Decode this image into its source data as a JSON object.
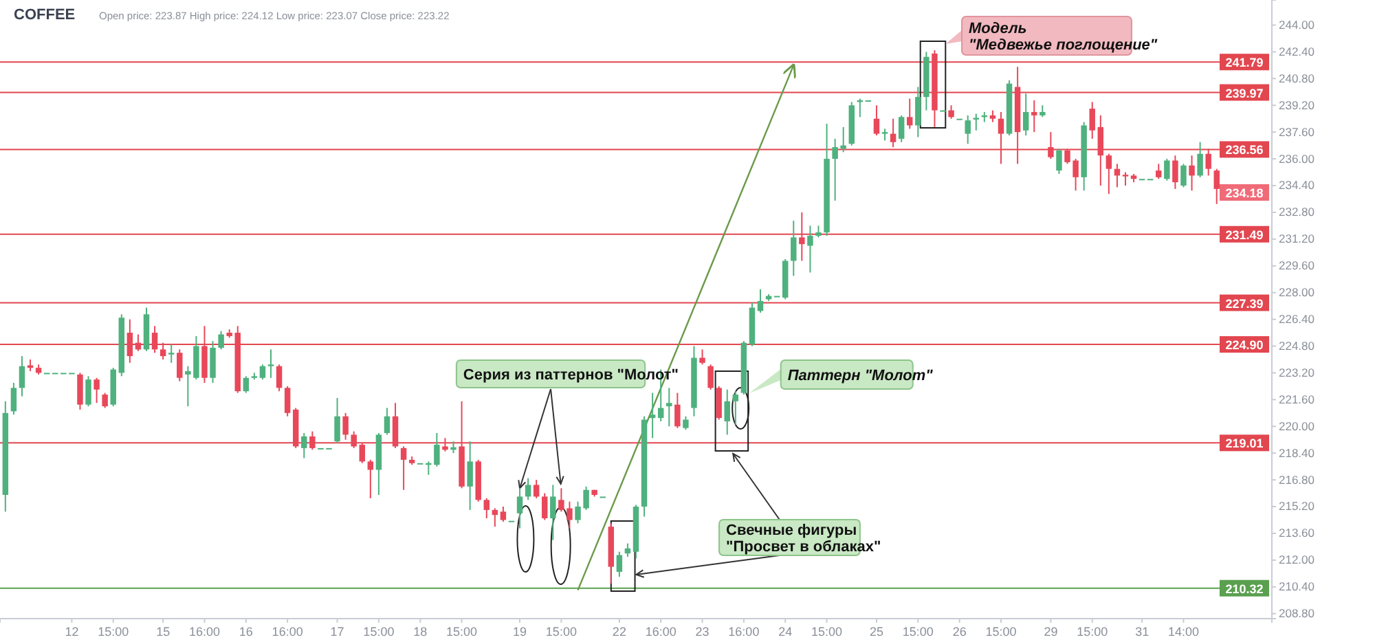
{
  "chart_data": {
    "type": "candlestick",
    "title": "COFFEE",
    "subtitle": "Open price: 223.87   High price: 224.12   Low price: 223.07   Close price: 223.22",
    "categories": [
      null,
      null,
      null,
      null,
      null,
      null,
      null,
      null,
      "12",
      null,
      null,
      null,
      null,
      "15:00",
      null,
      null,
      null,
      null,
      null,
      "15",
      null,
      null,
      null,
      null,
      "16:00",
      null,
      null,
      null,
      null,
      "16",
      null,
      null,
      null,
      null,
      "16:00",
      null,
      null,
      null,
      null,
      null,
      "17",
      null,
      null,
      null,
      null,
      "15:00",
      null,
      null,
      null,
      null,
      "18",
      null,
      null,
      null,
      null,
      "15:00",
      null,
      null,
      null,
      null,
      null,
      null,
      "19",
      null,
      null,
      null,
      null,
      "15:00",
      null,
      null,
      null,
      null,
      null,
      null,
      "22",
      null,
      null,
      null,
      null,
      "16:00",
      null,
      null,
      null,
      null,
      "23",
      null,
      null,
      null,
      null,
      "16:00",
      null,
      null,
      null,
      null,
      "24",
      null,
      null,
      null,
      null,
      "15:00",
      null,
      null,
      null,
      null,
      null,
      "25",
      null,
      null,
      null,
      null,
      "15:00",
      null,
      null,
      null,
      null,
      "26",
      null,
      null,
      null,
      null,
      "15:00",
      null,
      null,
      null,
      null,
      null,
      "29",
      null,
      null,
      null,
      null,
      "15:00",
      null,
      null,
      null,
      null,
      null,
      "31",
      null,
      null,
      null,
      null,
      "14:00",
      null,
      null,
      null,
      null
    ],
    "ohlc": [
      [
        215.9,
        221.5,
        214.9,
        220.8
      ],
      [
        220.9,
        222.6,
        220.7,
        222.3
      ],
      [
        222.3,
        224.2,
        221.8,
        223.6
      ],
      [
        223.65,
        224.0,
        223.3,
        223.5
      ],
      [
        223.5,
        223.7,
        223.1,
        223.2
      ],
      [
        223.2,
        223.2,
        223.2,
        223.2
      ],
      [
        223.2,
        223.2,
        223.2,
        223.2
      ],
      [
        223.2,
        223.2,
        223.2,
        223.2
      ],
      [
        223.2,
        223.2,
        223.2,
        223.2
      ],
      [
        223.1,
        223.2,
        221.0,
        221.3
      ],
      [
        221.3,
        223.0,
        221.2,
        222.8
      ],
      [
        222.8,
        222.9,
        221.4,
        222.2
      ],
      [
        221.9,
        222.0,
        221.1,
        221.2
      ],
      [
        221.3,
        223.5,
        221.2,
        223.4
      ],
      [
        223.2,
        226.7,
        223.0,
        226.5
      ],
      [
        225.6,
        226.4,
        223.8,
        224.2
      ],
      [
        225.0,
        225.5,
        224.5,
        224.6
      ],
      [
        224.6,
        227.1,
        224.5,
        226.7
      ],
      [
        225.6,
        226.0,
        224.4,
        224.6
      ],
      [
        224.6,
        225.0,
        224.0,
        224.2
      ],
      [
        224.3,
        224.9,
        223.8,
        224.4
      ],
      [
        224.4,
        224.6,
        222.7,
        222.9
      ],
      [
        223.1,
        223.6,
        221.2,
        223.3
      ],
      [
        222.9,
        225.4,
        222.8,
        224.8
      ],
      [
        224.8,
        226.0,
        222.6,
        222.9
      ],
      [
        222.9,
        225.1,
        222.6,
        224.7
      ],
      [
        224.7,
        225.7,
        224.6,
        225.5
      ],
      [
        225.6,
        225.8,
        225.3,
        225.4
      ],
      [
        225.6,
        226.0,
        222.0,
        222.1
      ],
      [
        222.1,
        223.0,
        222.0,
        222.9
      ],
      [
        222.9,
        223.2,
        222.8,
        223.0
      ],
      [
        222.9,
        223.7,
        222.8,
        223.6
      ],
      [
        223.6,
        224.6,
        222.9,
        223.7
      ],
      [
        223.6,
        223.7,
        222.1,
        222.3
      ],
      [
        222.3,
        222.4,
        220.6,
        220.8
      ],
      [
        221.0,
        221.1,
        218.7,
        218.8
      ],
      [
        218.7,
        219.6,
        218.1,
        219.4
      ],
      [
        219.4,
        219.7,
        218.6,
        218.7
      ],
      [
        218.7,
        218.7,
        218.7,
        218.7
      ],
      [
        218.7,
        218.7,
        218.7,
        218.7
      ],
      [
        219.1,
        221.7,
        219.0,
        220.6
      ],
      [
        220.6,
        220.8,
        219.2,
        219.5
      ],
      [
        219.5,
        219.7,
        218.7,
        218.8
      ],
      [
        218.9,
        219.0,
        217.8,
        217.9
      ],
      [
        217.9,
        218.0,
        215.7,
        217.4
      ],
      [
        217.4,
        219.6,
        215.9,
        219.5
      ],
      [
        219.6,
        221.1,
        219.5,
        220.6
      ],
      [
        220.6,
        221.4,
        218.7,
        218.8
      ],
      [
        218.7,
        218.8,
        216.2,
        218.0
      ],
      [
        218.0,
        218.2,
        217.7,
        217.8
      ],
      [
        217.8,
        217.8,
        217.8,
        217.8
      ],
      [
        217.7,
        217.9,
        217.1,
        217.8
      ],
      [
        217.7,
        219.6,
        217.6,
        218.9
      ],
      [
        218.8,
        219.3,
        218.5,
        218.6
      ],
      [
        218.6,
        219.1,
        218.4,
        218.75
      ],
      [
        218.8,
        221.5,
        216.3,
        216.4
      ],
      [
        216.4,
        219.1,
        215.0,
        217.9
      ],
      [
        217.9,
        218.0,
        215.5,
        215.6
      ],
      [
        215.6,
        215.7,
        214.5,
        215.0
      ],
      [
        215.0,
        215.1,
        214.0,
        214.7
      ],
      [
        214.9,
        215.2,
        214.3,
        214.4
      ],
      [
        214.35,
        214.35,
        214.35,
        214.35
      ],
      [
        214.8,
        216.3,
        213.9,
        215.8
      ],
      [
        215.8,
        216.9,
        215.6,
        216.5
      ],
      [
        216.5,
        216.8,
        215.7,
        215.8
      ],
      [
        215.8,
        216.0,
        214.4,
        214.5
      ],
      [
        214.5,
        216.5,
        213.2,
        215.8
      ],
      [
        215.6,
        216.3,
        214.9,
        215.0
      ],
      [
        215.1,
        215.5,
        213.9,
        214.4
      ],
      [
        214.4,
        215.5,
        214.2,
        215.2
      ],
      [
        215.1,
        216.4,
        215.0,
        216.2
      ],
      [
        216.2,
        216.2,
        215.8,
        215.9
      ],
      [
        215.8,
        215.8,
        215.8,
        215.8
      ],
      [
        214.0,
        214.2,
        210.6,
        211.6
      ],
      [
        211.3,
        212.5,
        211.0,
        212.3
      ],
      [
        212.4,
        213.0,
        212.2,
        212.7
      ],
      [
        212.5,
        215.3,
        212.1,
        215.2
      ],
      [
        215.2,
        220.6,
        214.6,
        220.4
      ],
      [
        220.5,
        222.0,
        219.3,
        220.7
      ],
      [
        220.5,
        223.4,
        220.3,
        221.1
      ],
      [
        221.2,
        222.3,
        220.0,
        221.4
      ],
      [
        221.3,
        222.0,
        219.9,
        220.0
      ],
      [
        219.9,
        220.6,
        219.8,
        220.4
      ],
      [
        221.1,
        224.8,
        220.6,
        224.1
      ],
      [
        224.1,
        224.6,
        223.7,
        223.8
      ],
      [
        223.6,
        223.7,
        222.2,
        222.3
      ],
      [
        222.3,
        222.4,
        220.4,
        220.5
      ],
      [
        220.3,
        222.2,
        219.5,
        221.5
      ],
      [
        221.5,
        222.1,
        220.1,
        221.9
      ],
      [
        222.0,
        225.1,
        221.9,
        225.0
      ],
      [
        224.9,
        227.4,
        224.8,
        227.1
      ],
      [
        226.9,
        228.2,
        226.8,
        227.5
      ],
      [
        227.6,
        227.9,
        227.5,
        227.8
      ],
      [
        227.8,
        227.8,
        227.8,
        227.8
      ],
      [
        227.7,
        230.0,
        227.6,
        229.9
      ],
      [
        229.9,
        232.3,
        229.0,
        231.3
      ],
      [
        231.3,
        232.8,
        229.9,
        230.9
      ],
      [
        230.8,
        232.0,
        229.2,
        231.4
      ],
      [
        231.4,
        232.0,
        231.3,
        231.6
      ],
      [
        231.6,
        238.1,
        231.4,
        236.0
      ],
      [
        236.0,
        237.2,
        233.5,
        236.7
      ],
      [
        236.6,
        237.9,
        236.4,
        236.8
      ],
      [
        236.9,
        239.4,
        236.8,
        239.2
      ],
      [
        239.4,
        239.6,
        238.5,
        239.5
      ],
      [
        239.5,
        239.5,
        239.5,
        239.5
      ],
      [
        238.4,
        239.2,
        237.4,
        237.5
      ],
      [
        237.5,
        237.8,
        237.1,
        237.6
      ],
      [
        237.5,
        238.4,
        236.7,
        237.0
      ],
      [
        237.2,
        238.6,
        237.0,
        238.5
      ],
      [
        238.5,
        239.6,
        237.8,
        238.0
      ],
      [
        238.0,
        240.3,
        237.3,
        239.7
      ],
      [
        239.7,
        242.4,
        238.9,
        242.1
      ],
      [
        242.3,
        242.5,
        237.9,
        238.9
      ],
      [
        238.9,
        238.9,
        238.9,
        238.9
      ],
      [
        238.9,
        239.2,
        238.4,
        238.5
      ],
      [
        238.4,
        238.4,
        238.4,
        238.4
      ],
      [
        237.5,
        238.6,
        236.9,
        238.3
      ],
      [
        238.35,
        238.7,
        237.7,
        238.45
      ],
      [
        238.5,
        238.8,
        238.2,
        238.6
      ],
      [
        238.6,
        238.9,
        238.2,
        238.4
      ],
      [
        238.4,
        238.8,
        235.7,
        237.5
      ],
      [
        237.5,
        240.7,
        237.4,
        240.5
      ],
      [
        240.3,
        241.5,
        235.7,
        237.6
      ],
      [
        237.7,
        239.9,
        237.4,
        238.8
      ],
      [
        238.8,
        239.5,
        237.6,
        238.6
      ],
      [
        238.6,
        239.2,
        238.5,
        238.8
      ],
      [
        236.7,
        237.6,
        236.0,
        236.1
      ],
      [
        235.3,
        236.6,
        235.1,
        236.5
      ],
      [
        236.5,
        236.6,
        235.7,
        235.8
      ],
      [
        235.9,
        236.0,
        234.1,
        234.9
      ],
      [
        234.9,
        238.2,
        234.1,
        238.0
      ],
      [
        239.0,
        239.4,
        237.2,
        237.7
      ],
      [
        237.9,
        238.6,
        234.4,
        236.2
      ],
      [
        236.2,
        236.3,
        233.9,
        235.4
      ],
      [
        235.4,
        235.7,
        234.3,
        235.0
      ],
      [
        235.05,
        235.2,
        234.4,
        234.95
      ],
      [
        235.0,
        235.1,
        234.6,
        234.8
      ],
      [
        234.8,
        234.8,
        234.8,
        234.8
      ],
      [
        234.8,
        234.8,
        234.8,
        234.8
      ],
      [
        235.3,
        235.7,
        234.8,
        234.9
      ],
      [
        234.8,
        236.0,
        234.7,
        235.9
      ],
      [
        235.9,
        236.2,
        234.2,
        234.6
      ],
      [
        234.4,
        235.7,
        234.3,
        235.6
      ],
      [
        235.6,
        236.2,
        234.1,
        235.0
      ],
      [
        235.0,
        237.0,
        234.9,
        236.3
      ],
      [
        236.3,
        236.6,
        235.0,
        235.4
      ],
      [
        235.3,
        235.4,
        233.3,
        234.2
      ]
    ],
    "series": [
      {
        "type": "line",
        "color": "#6a9a4a",
        "values": [
          null,
          null,
          null,
          null,
          null,
          null,
          null,
          null,
          null,
          null,
          null,
          null,
          null,
          null,
          null,
          null,
          null,
          null,
          null,
          null,
          null,
          null,
          null,
          null,
          null,
          null,
          null,
          null,
          null,
          null,
          null,
          null,
          null,
          null,
          null,
          null,
          null,
          null,
          null,
          null,
          null,
          null,
          null,
          null,
          null,
          null,
          null,
          null,
          null,
          null,
          null,
          null,
          null,
          null,
          null,
          null,
          null,
          null,
          null,
          null,
          null,
          null,
          null,
          null,
          null,
          null,
          null,
          null,
          null,
          210.2,
          null,
          null,
          null,
          null,
          null,
          null,
          null,
          null,
          null,
          null,
          null,
          null,
          null,
          null,
          null,
          null,
          null,
          null,
          null,
          null,
          null,
          null,
          null,
          null,
          null,
          241.6,
          null,
          null,
          null,
          null,
          null,
          null,
          null,
          null,
          null,
          null,
          null,
          null,
          null,
          null,
          null,
          null,
          null,
          null,
          null,
          null,
          null,
          null,
          null,
          null,
          null,
          null,
          null,
          null,
          null,
          null,
          null,
          null,
          null,
          null,
          null,
          null,
          null,
          null,
          null,
          null,
          null,
          null,
          null,
          null,
          null,
          null,
          null,
          null,
          null,
          null,
          null
        ]
      }
    ],
    "ylim": [
      208.5,
      245.5
    ],
    "yticks": [
      {
        "value": 244,
        "label": "244.00"
      },
      {
        "value": 242.4,
        "label": "242.40"
      },
      {
        "value": 240.8,
        "label": "240.80"
      },
      {
        "value": 239.2,
        "label": "239.20"
      },
      {
        "value": 237.6,
        "label": "237.60"
      },
      {
        "value": 236,
        "label": "236.00"
      },
      {
        "value": 234.4,
        "label": "234.40"
      },
      {
        "value": 232.8,
        "label": "232.80"
      },
      {
        "value": 231.2,
        "label": "231.20"
      },
      {
        "value": 229.6,
        "label": "229.60"
      },
      {
        "value": 228,
        "label": "228.00"
      },
      {
        "value": 226.4,
        "label": "226.40"
      },
      {
        "value": 224.8,
        "label": "224.80"
      },
      {
        "value": 223.2,
        "label": "223.20"
      },
      {
        "value": 221.6,
        "label": "221.60"
      },
      {
        "value": 220,
        "label": "220.00"
      },
      {
        "value": 218.4,
        "label": "218.40"
      },
      {
        "value": 216.8,
        "label": "216.80"
      },
      {
        "value": 215.2,
        "label": "215.20"
      },
      {
        "value": 213.6,
        "label": "213.60"
      },
      {
        "value": 212,
        "label": "212.00"
      },
      {
        "value": 210.4,
        "label": "210.40"
      },
      {
        "value": 208.8,
        "label": "208.80"
      }
    ],
    "ref_lines": [
      {
        "axis": "y",
        "value": 241.79,
        "label": "241.79",
        "color": "#e2464f"
      },
      {
        "axis": "y",
        "value": 239.97,
        "label": "239.97",
        "color": "#e2464f"
      },
      {
        "axis": "y",
        "value": 236.56,
        "label": "236.56",
        "color": "#e2464f"
      },
      {
        "axis": "y",
        "value": 231.49,
        "label": "231.49",
        "color": "#e2464f"
      },
      {
        "axis": "y",
        "value": 227.39,
        "label": "227.39",
        "color": "#e2464f"
      },
      {
        "axis": "y",
        "value": 224.9,
        "label": "224.90",
        "color": "#e2464f"
      },
      {
        "axis": "y",
        "value": 219.01,
        "label": "219.01",
        "color": "#e2464f"
      },
      {
        "axis": "y",
        "value": 210.32,
        "label": "210.32",
        "color": "#5aa04f"
      }
    ],
    "annotations": [
      "Модель\n\"Медвежье поглощение\"",
      {
        "text": "Серия из паттернов \"Молот\"",
        "x": "19",
        "y": 216.3
      },
      "Паттерн \"Молот\"",
      "Свечные фигуры\n\"Просвет в облаках\"",
      "234.18"
    ]
  }
}
